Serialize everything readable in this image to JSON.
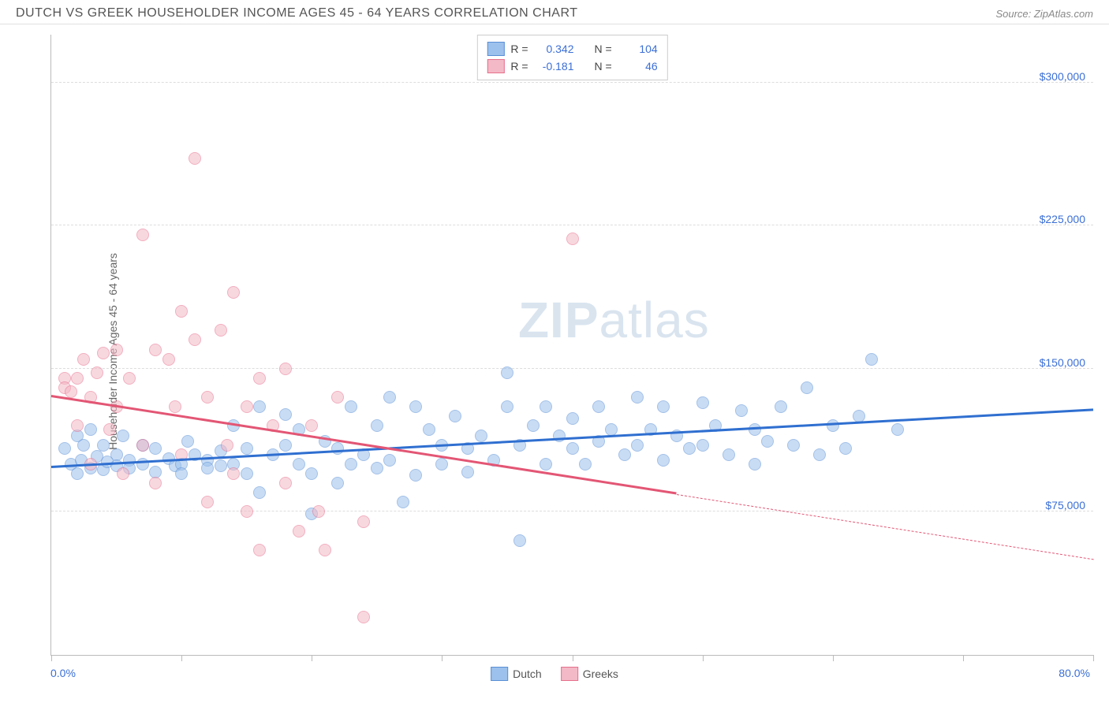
{
  "header": {
    "title": "DUTCH VS GREEK HOUSEHOLDER INCOME AGES 45 - 64 YEARS CORRELATION CHART",
    "source": "Source: ZipAtlas.com"
  },
  "watermark": {
    "prefix": "ZIP",
    "suffix": "atlas"
  },
  "chart": {
    "type": "scatter",
    "y_axis_label": "Householder Income Ages 45 - 64 years",
    "xlim": [
      0,
      80
    ],
    "ylim": [
      0,
      325000
    ],
    "x_min_label": "0.0%",
    "x_max_label": "80.0%",
    "y_ticks": [
      75000,
      150000,
      225000,
      300000
    ],
    "y_tick_labels": [
      "$75,000",
      "$150,000",
      "$225,000",
      "$300,000"
    ],
    "x_tick_positions": [
      0,
      10,
      20,
      30,
      40,
      50,
      60,
      70,
      80
    ],
    "grid_color": "#dddddd",
    "axis_color": "#bbbbbb",
    "background_color": "#ffffff",
    "point_radius": 8,
    "point_opacity": 0.55,
    "series": [
      {
        "name": "Dutch",
        "fill": "#9cc1ec",
        "stroke": "#5a8fd6",
        "R": "0.342",
        "N": "104",
        "trend": {
          "x1": 0,
          "y1": 98000,
          "x2": 80,
          "y2": 128000,
          "color": "#2f6fd0",
          "solid_until_x": 80
        },
        "points": [
          [
            1,
            108000
          ],
          [
            1.5,
            100000
          ],
          [
            2,
            115000
          ],
          [
            2,
            95000
          ],
          [
            2.3,
            102000
          ],
          [
            2.5,
            110000
          ],
          [
            3,
            118000
          ],
          [
            3,
            98000
          ],
          [
            3.5,
            104000
          ],
          [
            4,
            110000
          ],
          [
            4,
            97000
          ],
          [
            4.3,
            101000
          ],
          [
            5,
            105000
          ],
          [
            5,
            99000
          ],
          [
            5.5,
            115000
          ],
          [
            6,
            102000
          ],
          [
            6,
            98000
          ],
          [
            7,
            110000
          ],
          [
            7,
            100000
          ],
          [
            8,
            96000
          ],
          [
            8,
            108000
          ],
          [
            9,
            103000
          ],
          [
            9.5,
            99000
          ],
          [
            10,
            100000
          ],
          [
            10,
            95000
          ],
          [
            10.5,
            112000
          ],
          [
            11,
            105000
          ],
          [
            12,
            102000
          ],
          [
            12,
            98000
          ],
          [
            13,
            107000
          ],
          [
            13,
            99000
          ],
          [
            14,
            120000
          ],
          [
            14,
            100000
          ],
          [
            15,
            108000
          ],
          [
            15,
            95000
          ],
          [
            16,
            130000
          ],
          [
            16,
            85000
          ],
          [
            17,
            105000
          ],
          [
            18,
            110000
          ],
          [
            18,
            126000
          ],
          [
            19,
            100000
          ],
          [
            19,
            118000
          ],
          [
            20,
            95000
          ],
          [
            20,
            74000
          ],
          [
            21,
            112000
          ],
          [
            22,
            108000
          ],
          [
            22,
            90000
          ],
          [
            23,
            130000
          ],
          [
            23,
            100000
          ],
          [
            24,
            105000
          ],
          [
            25,
            120000
          ],
          [
            25,
            98000
          ],
          [
            26,
            135000
          ],
          [
            26,
            102000
          ],
          [
            27,
            80000
          ],
          [
            28,
            94000
          ],
          [
            28,
            130000
          ],
          [
            29,
            118000
          ],
          [
            30,
            110000
          ],
          [
            30,
            100000
          ],
          [
            31,
            125000
          ],
          [
            32,
            108000
          ],
          [
            32,
            96000
          ],
          [
            33,
            115000
          ],
          [
            34,
            102000
          ],
          [
            35,
            130000
          ],
          [
            35,
            148000
          ],
          [
            36,
            110000
          ],
          [
            36,
            60000
          ],
          [
            37,
            120000
          ],
          [
            38,
            100000
          ],
          [
            38,
            130000
          ],
          [
            39,
            115000
          ],
          [
            40,
            124000
          ],
          [
            40,
            108000
          ],
          [
            41,
            100000
          ],
          [
            42,
            130000
          ],
          [
            42,
            112000
          ],
          [
            43,
            118000
          ],
          [
            44,
            105000
          ],
          [
            45,
            135000
          ],
          [
            45,
            110000
          ],
          [
            46,
            118000
          ],
          [
            47,
            102000
          ],
          [
            47,
            130000
          ],
          [
            48,
            115000
          ],
          [
            49,
            108000
          ],
          [
            50,
            132000
          ],
          [
            50,
            110000
          ],
          [
            51,
            120000
          ],
          [
            52,
            105000
          ],
          [
            53,
            128000
          ],
          [
            54,
            100000
          ],
          [
            54,
            118000
          ],
          [
            55,
            112000
          ],
          [
            56,
            130000
          ],
          [
            57,
            110000
          ],
          [
            58,
            140000
          ],
          [
            59,
            105000
          ],
          [
            60,
            120000
          ],
          [
            61,
            108000
          ],
          [
            62,
            125000
          ],
          [
            63,
            155000
          ],
          [
            65,
            118000
          ]
        ]
      },
      {
        "name": "Greeks",
        "fill": "#f3b9c6",
        "stroke": "#e76f8d",
        "R": "-0.181",
        "N": "46",
        "trend": {
          "x1": 0,
          "y1": 135000,
          "x2": 80,
          "y2": 50000,
          "color": "#e35674",
          "solid_until_x": 48
        },
        "points": [
          [
            1,
            145000
          ],
          [
            1,
            140000
          ],
          [
            1.5,
            138000
          ],
          [
            2,
            145000
          ],
          [
            2,
            120000
          ],
          [
            2.5,
            155000
          ],
          [
            3,
            135000
          ],
          [
            3,
            100000
          ],
          [
            3.5,
            148000
          ],
          [
            4,
            158000
          ],
          [
            4.5,
            118000
          ],
          [
            5,
            130000
          ],
          [
            5,
            160000
          ],
          [
            5.5,
            95000
          ],
          [
            6,
            145000
          ],
          [
            7,
            220000
          ],
          [
            7,
            110000
          ],
          [
            8,
            160000
          ],
          [
            8,
            90000
          ],
          [
            9,
            155000
          ],
          [
            9.5,
            130000
          ],
          [
            10,
            180000
          ],
          [
            10,
            105000
          ],
          [
            11,
            165000
          ],
          [
            11,
            260000
          ],
          [
            12,
            135000
          ],
          [
            12,
            80000
          ],
          [
            13,
            170000
          ],
          [
            13.5,
            110000
          ],
          [
            14,
            95000
          ],
          [
            14,
            190000
          ],
          [
            15,
            130000
          ],
          [
            15,
            75000
          ],
          [
            16,
            145000
          ],
          [
            16,
            55000
          ],
          [
            17,
            120000
          ],
          [
            18,
            90000
          ],
          [
            18,
            150000
          ],
          [
            19,
            65000
          ],
          [
            20,
            120000
          ],
          [
            20.5,
            75000
          ],
          [
            21,
            55000
          ],
          [
            22,
            135000
          ],
          [
            24,
            70000
          ],
          [
            24,
            20000
          ],
          [
            40,
            218000
          ]
        ]
      }
    ],
    "legend_box": {
      "r_label": "R =",
      "n_label": "N ="
    },
    "bottom_legend": [
      "Dutch",
      "Greeks"
    ]
  }
}
